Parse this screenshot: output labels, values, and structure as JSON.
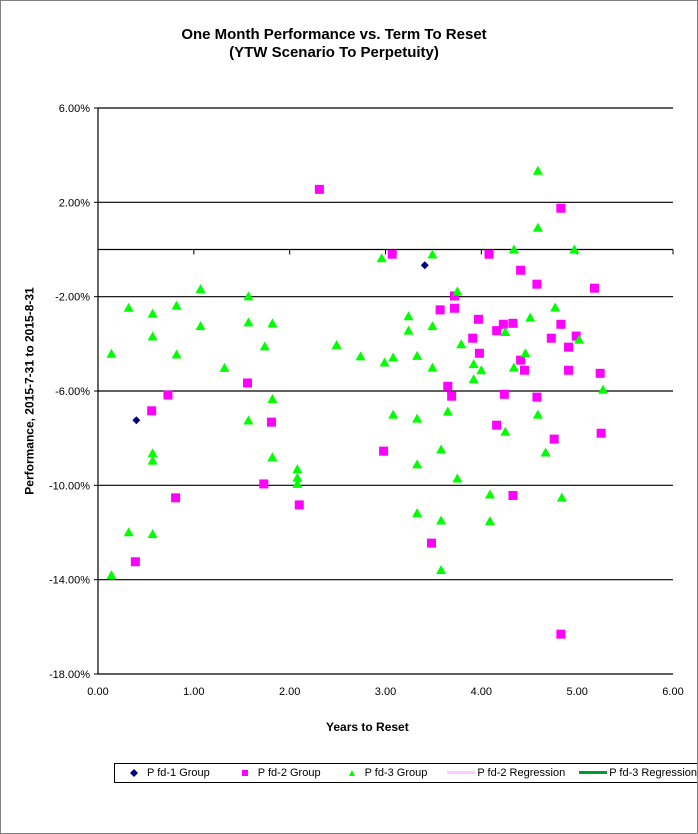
{
  "chart_data": {
    "type": "scatter",
    "title": "One Month Performance vs. Term To Reset",
    "subtitle": "(YTW Scenario To Perpetuity)",
    "xlabel": "Years to Reset",
    "ylabel": "Performance, 2015-7-31  to 2015-8-31",
    "xlim": [
      0,
      6
    ],
    "ylim": [
      -18,
      6
    ],
    "x_ticks": [
      "0.00",
      "1.00",
      "2.00",
      "3.00",
      "4.00",
      "5.00",
      "6.00"
    ],
    "y_ticks": [
      "6.00%",
      "2.00%",
      "-2.00%",
      "-6.00%",
      "-10.00%",
      "-14.00%",
      "-18.00%"
    ],
    "y_tick_values": [
      6,
      2,
      -2,
      -6,
      -10,
      -14,
      -18
    ],
    "grid": true,
    "legend_position": "bottom",
    "series": [
      {
        "name": "P fd-1 Group",
        "marker": "diamond",
        "color": "#000080",
        "points": [
          [
            0.4,
            -7.24
          ],
          [
            3.41,
            -0.67
          ]
        ]
      },
      {
        "name": "P fd-2 Group",
        "marker": "square",
        "color": "#FF00FF",
        "points": [
          [
            2.31,
            2.55
          ],
          [
            3.07,
            -0.2
          ],
          [
            3.57,
            -2.56
          ],
          [
            1.56,
            -5.66
          ],
          [
            0.73,
            -6.17
          ],
          [
            0.56,
            -6.84
          ],
          [
            1.81,
            -7.32
          ],
          [
            1.73,
            -9.94
          ],
          [
            0.81,
            -10.53
          ],
          [
            2.1,
            -10.83
          ],
          [
            0.39,
            -13.24
          ],
          [
            2.98,
            -8.55
          ],
          [
            3.48,
            -12.45
          ],
          [
            3.65,
            -5.8
          ],
          [
            4.83,
            1.75
          ],
          [
            4.08,
            -0.2
          ],
          [
            4.41,
            -0.88
          ],
          [
            4.58,
            -1.47
          ],
          [
            5.18,
            -1.64
          ],
          [
            3.72,
            -1.97
          ],
          [
            3.72,
            -2.49
          ],
          [
            3.97,
            -2.96
          ],
          [
            4.83,
            -3.17
          ],
          [
            4.23,
            -3.17
          ],
          [
            4.33,
            -3.13
          ],
          [
            4.16,
            -3.44
          ],
          [
            4.99,
            -3.67
          ],
          [
            4.73,
            -3.76
          ],
          [
            3.91,
            -3.76
          ],
          [
            4.91,
            -4.14
          ],
          [
            3.98,
            -4.4
          ],
          [
            4.41,
            -4.69
          ],
          [
            4.45,
            -5.12
          ],
          [
            4.91,
            -5.12
          ],
          [
            5.24,
            -5.25
          ],
          [
            3.69,
            -6.22
          ],
          [
            4.24,
            -6.14
          ],
          [
            4.58,
            -6.26
          ],
          [
            4.16,
            -7.45
          ],
          [
            4.76,
            -8.04
          ],
          [
            5.25,
            -7.79
          ],
          [
            4.33,
            -10.43
          ],
          [
            4.83,
            -16.31
          ]
        ]
      },
      {
        "name": "P fd-3 Group",
        "marker": "triangle",
        "color": "#00FF00",
        "points": [
          [
            0.14,
            -4.42
          ],
          [
            0.32,
            -2.47
          ],
          [
            0.57,
            -2.72
          ],
          [
            0.57,
            -3.69
          ],
          [
            0.82,
            -2.38
          ],
          [
            0.82,
            -4.45
          ],
          [
            1.07,
            -1.68
          ],
          [
            1.07,
            -3.25
          ],
          [
            1.32,
            -5.02
          ],
          [
            1.57,
            -1.99
          ],
          [
            1.57,
            -3.09
          ],
          [
            1.82,
            -3.13
          ],
          [
            1.74,
            -4.11
          ],
          [
            1.57,
            -7.25
          ],
          [
            1.82,
            -6.34
          ],
          [
            0.57,
            -8.64
          ],
          [
            0.57,
            -8.95
          ],
          [
            1.82,
            -8.81
          ],
          [
            2.08,
            -9.32
          ],
          [
            2.08,
            -9.68
          ],
          [
            2.08,
            -9.94
          ],
          [
            0.32,
            -11.99
          ],
          [
            0.57,
            -12.07
          ],
          [
            0.14,
            -13.81
          ],
          [
            2.96,
            -0.37
          ],
          [
            3.49,
            -0.21
          ],
          [
            2.49,
            -4.05
          ],
          [
            2.74,
            -4.53
          ],
          [
            2.99,
            -4.79
          ],
          [
            3.08,
            -4.58
          ],
          [
            3.33,
            -4.51
          ],
          [
            3.24,
            -2.83
          ],
          [
            3.24,
            -3.44
          ],
          [
            3.49,
            -3.25
          ],
          [
            3.49,
            -5.01
          ],
          [
            3.08,
            -7.0
          ],
          [
            3.33,
            -7.17
          ],
          [
            3.33,
            -9.11
          ],
          [
            3.58,
            -8.48
          ],
          [
            3.33,
            -11.18
          ],
          [
            3.58,
            -11.49
          ],
          [
            3.58,
            -13.59
          ],
          [
            3.65,
            -6.87
          ],
          [
            4.59,
            3.34
          ],
          [
            4.59,
            0.92
          ],
          [
            4.34,
            0.0
          ],
          [
            4.97,
            0.0
          ],
          [
            3.75,
            -1.78
          ],
          [
            4.77,
            -2.46
          ],
          [
            4.51,
            -2.89
          ],
          [
            4.25,
            -3.5
          ],
          [
            5.02,
            -3.82
          ],
          [
            3.79,
            -4.02
          ],
          [
            4.46,
            -4.4
          ],
          [
            3.92,
            -4.86
          ],
          [
            4.0,
            -5.12
          ],
          [
            4.34,
            -5.01
          ],
          [
            3.92,
            -5.5
          ],
          [
            5.27,
            -5.94
          ],
          [
            4.59,
            -7.0
          ],
          [
            4.25,
            -7.73
          ],
          [
            4.67,
            -8.61
          ],
          [
            3.75,
            -9.71
          ],
          [
            4.09,
            -10.39
          ],
          [
            4.84,
            -10.52
          ],
          [
            4.09,
            -11.52
          ]
        ]
      },
      {
        "name": "P fd-2 Regression",
        "marker": "line",
        "color": "#FFCCFF",
        "points": []
      },
      {
        "name": "P fd-3 Regression",
        "marker": "line",
        "color": "#009933",
        "points": []
      }
    ]
  }
}
